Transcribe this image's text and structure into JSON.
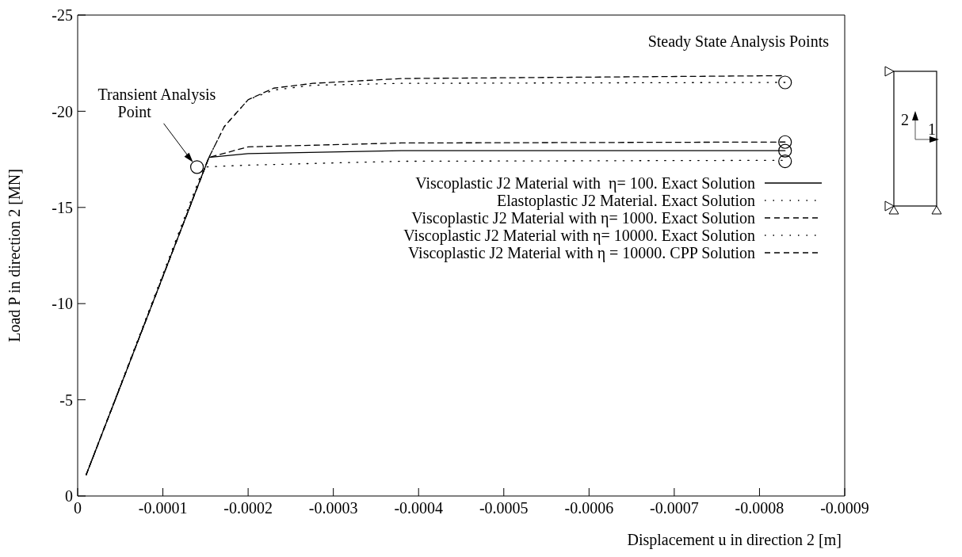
{
  "chart_data": {
    "type": "line",
    "xlabel": "Displacement u in direction 2 [m]",
    "ylabel": "Load P in direction 2 [MN]",
    "xlim": [
      0,
      -0.0009
    ],
    "xticks": [
      0,
      -0.0001,
      -0.0002,
      -0.0003,
      -0.0004,
      -0.0005,
      -0.0006,
      -0.0007,
      -0.0008,
      -0.0009
    ],
    "ylim": [
      0,
      -25
    ],
    "yticks": [
      0,
      -5,
      -10,
      -15,
      -20,
      -25
    ],
    "legend": "right",
    "series": [
      {
        "name": "Viscoplastic J2 Material with  η= 100. Exact Solution",
        "color": "#000000",
        "line_style": "solid",
        "x": [
          -1e-05,
          -0.000154,
          -0.0002,
          -0.00038,
          -0.00083
        ],
        "values": [
          -1.1,
          -17.6,
          -17.8,
          -17.95,
          -17.95
        ]
      },
      {
        "name": "Elastoplastic J2 Material. Exact Solution",
        "color": "#000000",
        "line_style": "dotted",
        "x": [
          -1e-05,
          -0.000148,
          -0.0002,
          -0.00038,
          -0.00083
        ],
        "values": [
          -1.1,
          -17.1,
          -17.2,
          -17.4,
          -17.45
        ]
      },
      {
        "name": "Viscoplastic J2 Material with η= 1000. Exact Solution",
        "color": "#000000",
        "line_style": "dashed",
        "x": [
          -1e-05,
          -0.000154,
          -0.0002,
          -0.00038,
          -0.00083
        ],
        "values": [
          -1.1,
          -17.6,
          -18.15,
          -18.35,
          -18.4
        ]
      },
      {
        "name": "Viscoplastic J2 Material with η= 10000. Exact Solution",
        "color": "#000000",
        "line_style": "dotted",
        "x": [
          -1e-05,
          -0.000154,
          -0.000172,
          -0.0002,
          -0.00023,
          -0.000276,
          -0.00038,
          -0.00083
        ],
        "values": [
          -1.1,
          -17.6,
          -19.2,
          -20.6,
          -21.1,
          -21.35,
          -21.45,
          -21.5
        ]
      },
      {
        "name": "Viscoplastic J2 Material with η = 10000. CPP Solution",
        "color": "#000000",
        "line_style": "dashed",
        "x": [
          -1e-05,
          -0.000154,
          -0.000172,
          -0.0002,
          -0.00023,
          -0.000276,
          -0.00038,
          -0.00083
        ],
        "values": [
          -1.1,
          -17.6,
          -19.2,
          -20.6,
          -21.2,
          -21.45,
          -21.7,
          -21.85
        ]
      },
      {
        "type": "scatter",
        "marker": "circle",
        "color": "#000000",
        "x": [
          -0.00014,
          -0.00083,
          -0.00083,
          -0.00083,
          -0.00083
        ],
        "values": [
          -17.1,
          -21.5,
          -18.4,
          -17.95,
          -17.4
        ]
      }
    ],
    "annotations": [
      {
        "text": "Transient Analysis Point",
        "x": -0.00014,
        "y": -17.1
      },
      "Steady State Analysis Points",
      "2",
      "1"
    ]
  }
}
